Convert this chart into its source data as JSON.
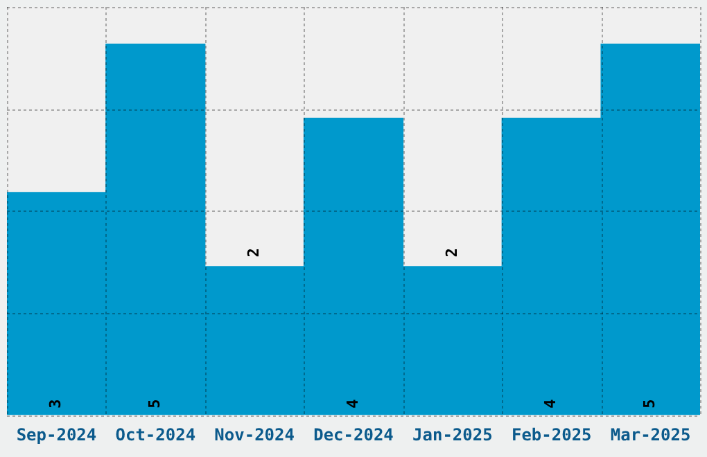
{
  "chart_data": {
    "type": "bar",
    "categories": [
      "Sep-2024",
      "Oct-2024",
      "Nov-2024",
      "Dec-2024",
      "Jan-2025",
      "Feb-2025",
      "Mar-2025"
    ],
    "values": [
      3,
      5,
      2,
      4,
      2,
      4,
      5
    ],
    "color": "#0099cc",
    "ylim": [
      0,
      5.5
    ],
    "yticks": [
      {
        "value": 0,
        "label": null
      },
      {
        "value": 1.375,
        "label": null
      },
      {
        "value": 2.75,
        "label": null
      },
      {
        "value": 4.125,
        "label": null
      },
      {
        "value": 5.5,
        "label": null
      }
    ],
    "grid": true,
    "tick_labels": "x",
    "data_labels": true
  }
}
